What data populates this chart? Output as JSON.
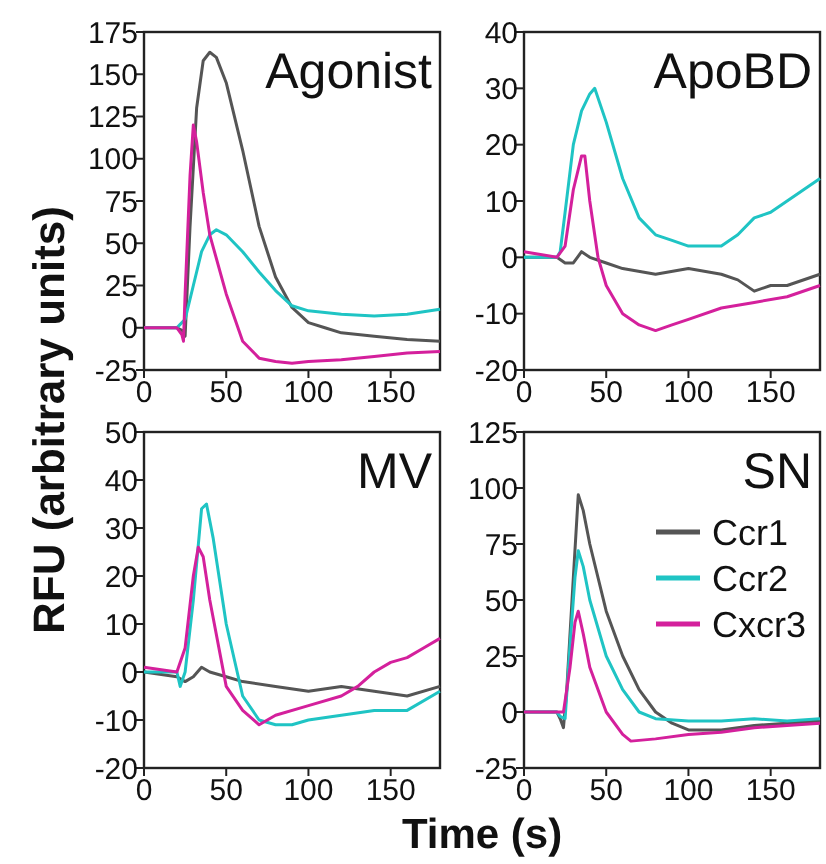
{
  "chart_data": [
    {
      "type": "line",
      "title": "Agonist",
      "ylabel": "RFU (arbitrary units)",
      "xlim": [
        0,
        180
      ],
      "xticks": [
        0,
        50,
        100,
        150
      ],
      "ylim": [
        -25,
        175
      ],
      "yticks": [
        -25,
        0,
        25,
        50,
        75,
        100,
        125,
        150,
        175
      ],
      "series": [
        {
          "color": "#555555",
          "x": [
            0,
            20,
            24,
            25,
            28,
            32,
            36,
            40,
            44,
            50,
            60,
            70,
            80,
            90,
            100,
            110,
            120,
            140,
            160,
            180
          ],
          "values": [
            0,
            0,
            -2,
            -5,
            60,
            130,
            158,
            163,
            160,
            145,
            105,
            60,
            30,
            12,
            3,
            0,
            -3,
            -5,
            -7,
            -8
          ]
        },
        {
          "color": "#1fc4c4",
          "x": [
            0,
            20,
            22,
            25,
            30,
            35,
            40,
            44,
            50,
            60,
            70,
            80,
            90,
            100,
            120,
            140,
            160,
            180
          ],
          "values": [
            0,
            0,
            2,
            5,
            25,
            45,
            55,
            58,
            55,
            45,
            33,
            22,
            13,
            10,
            8,
            7,
            8,
            11
          ]
        },
        {
          "color": "#d4209c",
          "x": [
            0,
            20,
            23,
            24,
            25,
            28,
            30,
            32,
            36,
            40,
            50,
            60,
            70,
            80,
            90,
            100,
            120,
            140,
            160,
            180
          ],
          "values": [
            0,
            0,
            -4,
            -8,
            20,
            90,
            120,
            110,
            80,
            55,
            20,
            -8,
            -18,
            -20,
            -21,
            -20,
            -19,
            -17,
            -15,
            -14
          ]
        }
      ]
    },
    {
      "type": "line",
      "title": "ApoBD",
      "xlim": [
        0,
        180
      ],
      "xticks": [
        0,
        50,
        100,
        150
      ],
      "ylim": [
        -20,
        40
      ],
      "yticks": [
        -20,
        -10,
        0,
        10,
        20,
        30,
        40
      ],
      "series": [
        {
          "color": "#555555",
          "x": [
            0,
            10,
            20,
            25,
            30,
            35,
            40,
            50,
            60,
            80,
            100,
            120,
            130,
            140,
            150,
            160,
            180
          ],
          "values": [
            0,
            0,
            0,
            -1,
            -1,
            1,
            0,
            -1,
            -2,
            -3,
            -2,
            -3,
            -4,
            -6,
            -5,
            -5,
            -3
          ]
        },
        {
          "color": "#1fc4c4",
          "x": [
            0,
            20,
            22,
            25,
            30,
            35,
            40,
            43,
            50,
            60,
            70,
            80,
            90,
            100,
            120,
            130,
            140,
            150,
            160,
            170,
            180
          ],
          "values": [
            0,
            0,
            1,
            8,
            20,
            26,
            29,
            30,
            24,
            14,
            7,
            4,
            3,
            2,
            2,
            4,
            7,
            8,
            10,
            12,
            14
          ]
        },
        {
          "color": "#d4209c",
          "x": [
            0,
            20,
            25,
            30,
            35,
            37,
            40,
            45,
            50,
            60,
            70,
            80,
            90,
            100,
            120,
            140,
            160,
            180
          ],
          "values": [
            1,
            0,
            2,
            12,
            18,
            18,
            10,
            0,
            -5,
            -10,
            -12,
            -13,
            -12,
            -11,
            -9,
            -8,
            -7,
            -5
          ]
        }
      ]
    },
    {
      "type": "line",
      "title": "MV",
      "xlim": [
        0,
        180
      ],
      "xticks": [
        0,
        50,
        100,
        150
      ],
      "ylim": [
        -20,
        50
      ],
      "yticks": [
        -20,
        -10,
        0,
        10,
        20,
        30,
        40,
        50
      ],
      "series": [
        {
          "color": "#555555",
          "x": [
            0,
            20,
            25,
            30,
            35,
            40,
            50,
            60,
            80,
            100,
            120,
            140,
            160,
            180
          ],
          "values": [
            0,
            -1,
            -2,
            -1,
            1,
            0,
            -1,
            -2,
            -3,
            -4,
            -3,
            -4,
            -5,
            -3
          ]
        },
        {
          "color": "#1fc4c4",
          "x": [
            0,
            20,
            22,
            25,
            30,
            35,
            38,
            42,
            50,
            60,
            70,
            80,
            90,
            100,
            120,
            140,
            160,
            180
          ],
          "values": [
            0,
            0,
            -3,
            0,
            15,
            34,
            35,
            28,
            10,
            -5,
            -10,
            -11,
            -11,
            -10,
            -9,
            -8,
            -8,
            -4
          ]
        },
        {
          "color": "#d4209c",
          "x": [
            0,
            20,
            25,
            30,
            33,
            36,
            40,
            50,
            60,
            70,
            80,
            100,
            120,
            130,
            140,
            150,
            160,
            170,
            180
          ],
          "values": [
            1,
            0,
            5,
            20,
            26,
            24,
            15,
            -3,
            -8,
            -11,
            -9,
            -7,
            -5,
            -3,
            0,
            2,
            3,
            5,
            7
          ]
        }
      ]
    },
    {
      "type": "line",
      "title": "SN",
      "xlabel": "Time (s)",
      "legend": "top right",
      "xlim": [
        0,
        180
      ],
      "xticks": [
        0,
        50,
        100,
        150
      ],
      "ylim": [
        -25,
        125
      ],
      "yticks": [
        -25,
        0,
        25,
        50,
        75,
        100,
        125
      ],
      "series": [
        {
          "name": "Ccr1",
          "color": "#555555",
          "x": [
            0,
            20,
            22,
            24,
            26,
            30,
            33,
            36,
            40,
            50,
            60,
            70,
            80,
            90,
            100,
            120,
            140,
            160,
            180
          ],
          "values": [
            0,
            0,
            -3,
            -7,
            10,
            60,
            97,
            90,
            75,
            45,
            25,
            10,
            0,
            -5,
            -8,
            -8,
            -6,
            -5,
            -4
          ]
        },
        {
          "name": "Ccr2",
          "color": "#1fc4c4",
          "x": [
            0,
            20,
            22,
            25,
            28,
            31,
            33,
            36,
            40,
            50,
            60,
            70,
            80,
            100,
            120,
            140,
            160,
            180
          ],
          "values": [
            0,
            0,
            -2,
            -3,
            30,
            60,
            72,
            65,
            50,
            25,
            10,
            0,
            -3,
            -4,
            -4,
            -3,
            -4,
            -3
          ]
        },
        {
          "name": "Cxcr3",
          "color": "#d4209c",
          "x": [
            0,
            20,
            24,
            28,
            31,
            33,
            36,
            40,
            50,
            60,
            65,
            80,
            100,
            120,
            140,
            160,
            180
          ],
          "values": [
            0,
            0,
            0,
            20,
            40,
            45,
            35,
            20,
            0,
            -10,
            -13,
            -12,
            -10,
            -9,
            -7,
            -6,
            -5
          ]
        }
      ]
    }
  ]
}
